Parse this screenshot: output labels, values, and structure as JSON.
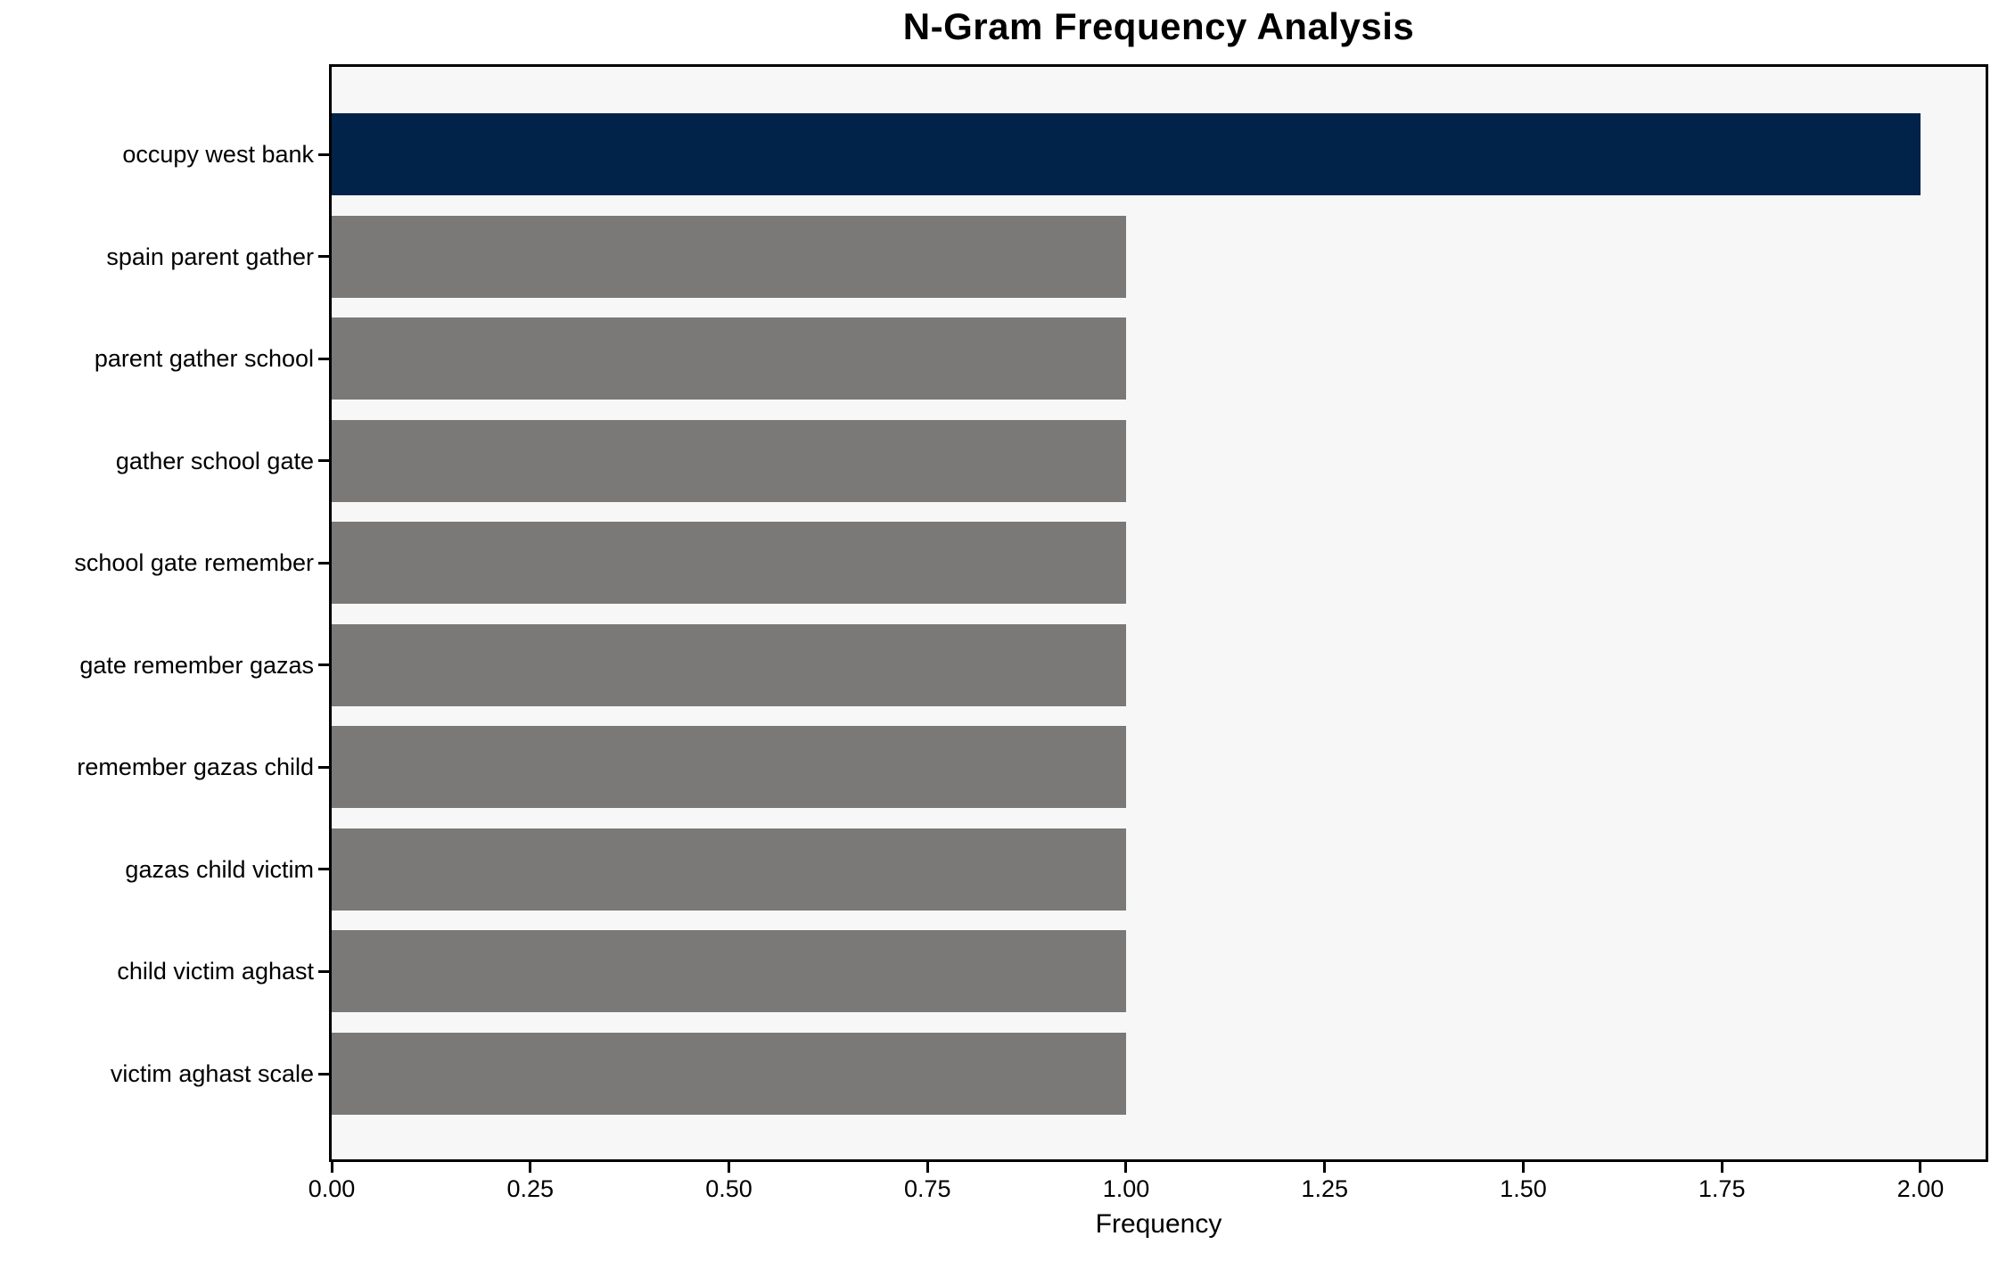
{
  "chart_data": {
    "type": "bar",
    "orientation": "horizontal",
    "title": "N-Gram Frequency Analysis",
    "xlabel": "Frequency",
    "ylabel": "",
    "categories": [
      "occupy west bank",
      "spain parent gather",
      "parent gather school",
      "gather school gate",
      "school gate remember",
      "gate remember gazas",
      "remember gazas child",
      "gazas child victim",
      "child victim aghast",
      "victim aghast scale"
    ],
    "values": [
      2,
      1,
      1,
      1,
      1,
      1,
      1,
      1,
      1,
      1
    ],
    "bar_colors": [
      "#022349",
      "#7a7977",
      "#7a7977",
      "#7a7977",
      "#7a7977",
      "#7a7977",
      "#7a7977",
      "#7a7977",
      "#7a7977",
      "#7a7977"
    ],
    "x_ticks": [
      "0.00",
      "0.25",
      "0.50",
      "0.75",
      "1.00",
      "1.25",
      "1.50",
      "1.75",
      "2.00"
    ],
    "x_tick_values": [
      0,
      0.25,
      0.5,
      0.75,
      1.0,
      1.25,
      1.5,
      1.75,
      2.0
    ],
    "xlim": [
      0,
      2.082
    ],
    "grid": false,
    "legend": "none",
    "colors": {
      "highlight_bar": "#022349",
      "default_bar": "#7a7977",
      "plot_background": "#f7f7f7",
      "figure_background": "#ffffff",
      "axis": "#000000",
      "text": "#000000"
    }
  }
}
